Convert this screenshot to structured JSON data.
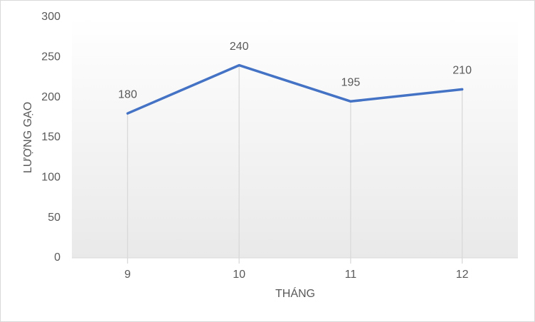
{
  "chart_data": {
    "type": "line",
    "x_label": "THÁNG",
    "y_label": "LƯỢNG GẠO",
    "categories": [
      "9",
      "10",
      "11",
      "12"
    ],
    "values": [
      180,
      240,
      195,
      210
    ],
    "color": "#4472c4",
    "ylim": [
      0,
      300
    ],
    "yticks": [
      0,
      50,
      100,
      150,
      200,
      250,
      300
    ],
    "grid": false,
    "drop_lines": true,
    "data_labels": true
  }
}
